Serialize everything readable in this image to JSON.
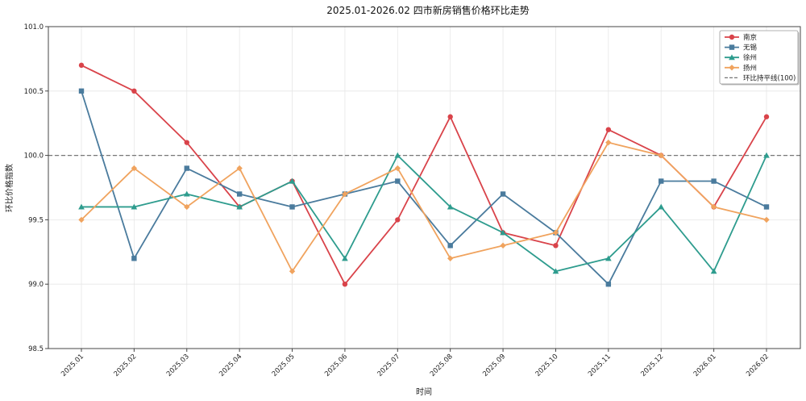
{
  "chart_data": {
    "type": "line",
    "title": "2025.01-2026.02 四市新房销售价格环比走势",
    "xlabel": "时间",
    "ylabel": "环比价格指数",
    "categories": [
      "2025.01",
      "2025.02",
      "2025.03",
      "2025.04",
      "2025.05",
      "2025.06",
      "2025.07",
      "2025.08",
      "2025.09",
      "2025.10",
      "2025.11",
      "2025.12",
      "2026.01",
      "2026.02"
    ],
    "ylim": [
      98.5,
      101.0
    ],
    "yticks": [
      "98.5",
      "99.0",
      "99.5",
      "100.0",
      "100.5",
      "101.0"
    ],
    "grid": true,
    "legend_position": "top-right",
    "series": [
      {
        "name": "南京",
        "color": "#d9434a",
        "marker": "circle",
        "values": [
          100.7,
          100.5,
          100.1,
          99.6,
          99.8,
          99.0,
          99.5,
          100.3,
          99.4,
          99.3,
          100.2,
          100.0,
          99.6,
          100.3
        ]
      },
      {
        "name": "无锡",
        "color": "#4a7b9d",
        "marker": "square",
        "values": [
          100.5,
          99.2,
          99.9,
          99.7,
          99.6,
          99.7,
          99.8,
          99.3,
          99.7,
          99.4,
          99.0,
          99.8,
          99.8,
          99.6
        ]
      },
      {
        "name": "徐州",
        "color": "#2e9c8e",
        "marker": "triangle",
        "values": [
          99.6,
          99.6,
          99.7,
          99.6,
          99.8,
          99.2,
          100.0,
          99.6,
          99.4,
          99.1,
          99.2,
          99.6,
          99.1,
          100.0
        ]
      },
      {
        "name": "扬州",
        "color": "#f0a35e",
        "marker": "diamond",
        "values": [
          99.5,
          99.9,
          99.6,
          99.9,
          99.1,
          99.7,
          99.9,
          99.2,
          99.3,
          99.4,
          100.1,
          100.0,
          99.6,
          99.5
        ]
      }
    ],
    "reference_line": {
      "name": "环比持平线(100)",
      "value": 100.0,
      "color": "#777777",
      "style": "dashed"
    }
  }
}
